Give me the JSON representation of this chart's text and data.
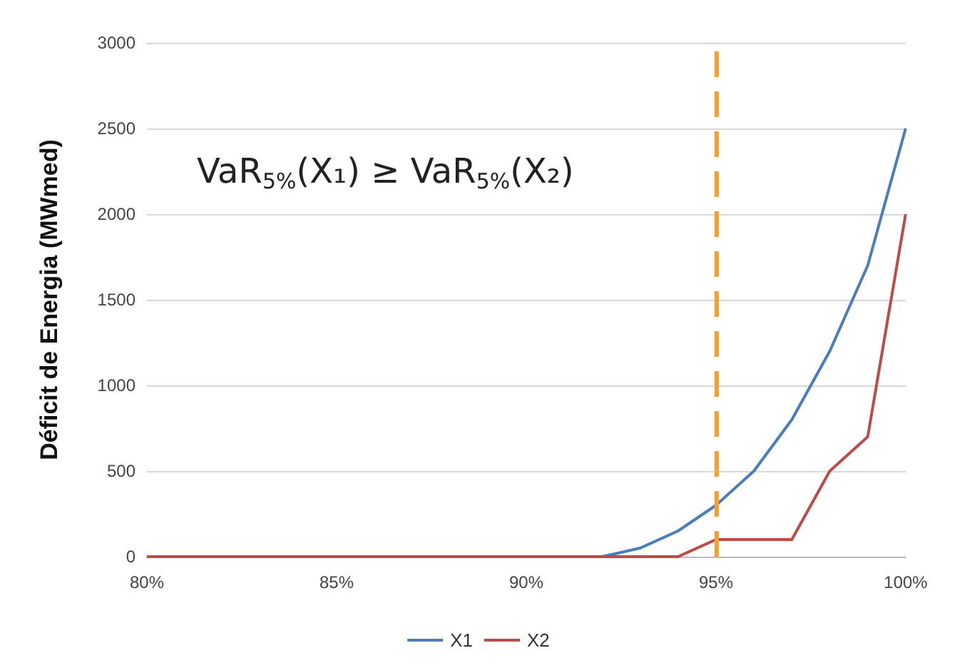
{
  "chart_data": {
    "type": "line",
    "ylabel": "Déficit de Energia (MWmed)",
    "x": [
      80,
      81,
      82,
      83,
      84,
      85,
      86,
      87,
      88,
      89,
      90,
      91,
      92,
      93,
      94,
      95,
      96,
      97,
      98,
      99,
      100
    ],
    "series": [
      {
        "name": "X1",
        "color": "#4a7ebb",
        "values": [
          null,
          null,
          null,
          null,
          null,
          null,
          null,
          null,
          null,
          null,
          null,
          null,
          0,
          50,
          150,
          300,
          500,
          800,
          1200,
          1700,
          2500
        ]
      },
      {
        "name": "X2",
        "color": "#be4b48",
        "values": [
          0,
          0,
          0,
          0,
          0,
          0,
          0,
          0,
          0,
          0,
          0,
          0,
          0,
          0,
          0,
          100,
          100,
          100,
          500,
          700,
          2000
        ]
      }
    ],
    "xlim": [
      80,
      100
    ],
    "xticks": [
      {
        "value": 80,
        "label": "80%"
      },
      {
        "value": 85,
        "label": "85%"
      },
      {
        "value": 90,
        "label": "90%"
      },
      {
        "value": 95,
        "label": "95%"
      },
      {
        "value": 100,
        "label": "100%"
      }
    ],
    "ylim": [
      0,
      3000
    ],
    "yticks": [
      0,
      500,
      1000,
      1500,
      2000,
      2500,
      3000
    ],
    "ref_lines": [
      {
        "axis": "x",
        "value": 95,
        "color": "#f5a031",
        "line_style": "dashed"
      }
    ],
    "annotations": [
      "VaR$_{5%}$(X₁) ≥ VaR$_{5%}$(X₂)"
    ],
    "grid": "y",
    "legend": "bottom",
    "marker": "none",
    "line_style": "solid"
  }
}
